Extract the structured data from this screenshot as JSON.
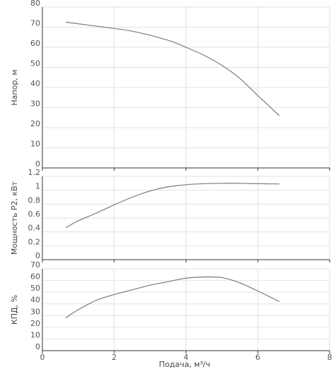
{
  "chart_data": [
    {
      "type": "line",
      "ylabel": "Напор, м",
      "xlim": [
        0,
        8
      ],
      "ylim": [
        0,
        80
      ],
      "yticks": [
        "0",
        "10",
        "20",
        "30",
        "40",
        "50",
        "60",
        "70",
        "80"
      ],
      "ytick_values": [
        0,
        10,
        20,
        30,
        40,
        50,
        60,
        70,
        80
      ],
      "grid": true,
      "series": [
        {
          "x": [
            0.65,
            1.5,
            2.5,
            3.5,
            4.0,
            4.5,
            5.0,
            5.5,
            6.0,
            6.6
          ],
          "y": [
            72.5,
            70.5,
            68,
            63.5,
            60,
            56,
            51,
            44.5,
            36,
            26
          ]
        }
      ]
    },
    {
      "type": "line",
      "ylabel": "Мощность Р2, кВт",
      "xlim": [
        0,
        8
      ],
      "ylim": [
        0,
        1.2
      ],
      "yticks": [
        "0",
        "0.2",
        "0.4",
        "0.6",
        "0.8",
        "1",
        "1.2"
      ],
      "ytick_values": [
        0,
        0.2,
        0.4,
        0.6,
        0.8,
        1.0,
        1.2
      ],
      "grid": true,
      "series": [
        {
          "x": [
            0.65,
            1.0,
            1.5,
            2.0,
            2.5,
            3.0,
            3.5,
            4.0,
            4.5,
            5.0,
            5.5,
            6.0,
            6.6
          ],
          "y": [
            0.46,
            0.56,
            0.67,
            0.79,
            0.9,
            0.99,
            1.05,
            1.08,
            1.095,
            1.1,
            1.1,
            1.095,
            1.09
          ]
        }
      ]
    },
    {
      "type": "line",
      "ylabel": "КПД, %",
      "xlabel": "Подача, м³/ч",
      "xlim": [
        0,
        8
      ],
      "ylim": [
        0,
        70
      ],
      "xticks": [
        "0",
        "2",
        "4",
        "6",
        "8"
      ],
      "xtick_values": [
        0,
        2,
        4,
        6,
        8
      ],
      "yticks": [
        "0",
        "10",
        "20",
        "30",
        "40",
        "50",
        "60",
        "70"
      ],
      "ytick_values": [
        0,
        10,
        20,
        30,
        40,
        50,
        60,
        70
      ],
      "grid": true,
      "series": [
        {
          "x": [
            0.65,
            1.0,
            1.5,
            2.0,
            2.5,
            3.0,
            3.5,
            4.0,
            4.5,
            5.0,
            5.5,
            6.0,
            6.6
          ],
          "y": [
            28,
            35,
            43,
            48,
            52,
            56,
            59,
            62,
            63,
            62.5,
            58,
            51,
            42
          ]
        }
      ]
    }
  ]
}
